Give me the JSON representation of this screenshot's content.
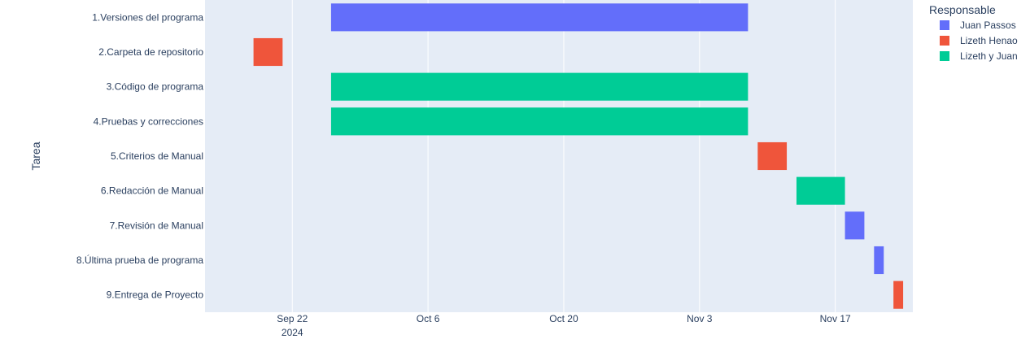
{
  "chart_data": {
    "type": "bar",
    "orientation": "horizontal-gantt",
    "ylabel": "Tarea",
    "xlim": [
      "2024-09-13",
      "2024-11-25"
    ],
    "x_ticks": [
      {
        "date": "2024-09-22",
        "label": "Sep 22",
        "sublabel": "2024"
      },
      {
        "date": "2024-10-06",
        "label": "Oct 6",
        "sublabel": ""
      },
      {
        "date": "2024-10-20",
        "label": "Oct 20",
        "sublabel": ""
      },
      {
        "date": "2024-11-03",
        "label": "Nov 3",
        "sublabel": ""
      },
      {
        "date": "2024-11-17",
        "label": "Nov 17",
        "sublabel": ""
      }
    ],
    "categories": [
      "1.Versiones del programa",
      "2.Carpeta de repositorio",
      "3.Código de programa",
      "4.Pruebas y correcciones",
      "5.Criterios de Manual",
      "6.Redacción de Manual",
      "7.Revisión de Manual",
      "8.Última prueba de programa",
      "9.Entrega de Proyecto"
    ],
    "tasks": [
      {
        "task": "1.Versiones del programa",
        "start": "2024-09-26",
        "end": "2024-11-08",
        "responsable": "Juan Passos"
      },
      {
        "task": "2.Carpeta de repositorio",
        "start": "2024-09-18",
        "end": "2024-09-21",
        "responsable": "Lizeth Henao"
      },
      {
        "task": "3.Código de programa",
        "start": "2024-09-26",
        "end": "2024-11-08",
        "responsable": "Lizeth y Juan"
      },
      {
        "task": "4.Pruebas y correcciones",
        "start": "2024-09-26",
        "end": "2024-11-08",
        "responsable": "Lizeth y Juan"
      },
      {
        "task": "5.Criterios de Manual",
        "start": "2024-11-09",
        "end": "2024-11-12",
        "responsable": "Lizeth Henao"
      },
      {
        "task": "6.Redacción de Manual",
        "start": "2024-11-13",
        "end": "2024-11-18",
        "responsable": "Lizeth y Juan"
      },
      {
        "task": "7.Revisión de Manual",
        "start": "2024-11-18",
        "end": "2024-11-20",
        "responsable": "Juan Passos"
      },
      {
        "task": "8.Última prueba de programa",
        "start": "2024-11-21",
        "end": "2024-11-22",
        "responsable": "Juan Passos"
      },
      {
        "task": "9.Entrega de Proyecto",
        "start": "2024-11-23",
        "end": "2024-11-24",
        "responsable": "Lizeth Henao"
      }
    ],
    "legend": {
      "title": "Responsable",
      "placement": "top-right",
      "items": [
        {
          "name": "Juan Passos",
          "color": "#636efa"
        },
        {
          "name": "Lizeth Henao",
          "color": "#ef553b"
        },
        {
          "name": "Lizeth y Juan",
          "color": "#00cc96"
        }
      ]
    },
    "plot_background": "#e5ecf6",
    "grid": true,
    "grid_color": "#ffffff"
  }
}
